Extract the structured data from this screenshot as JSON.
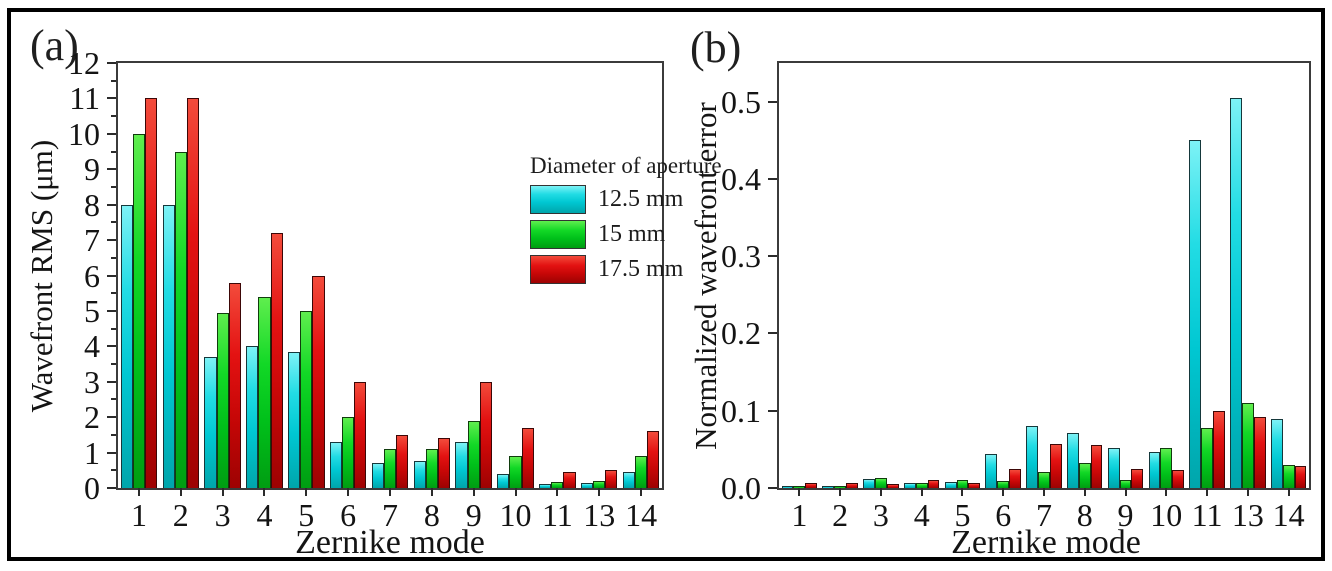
{
  "figure": {
    "background": "#ffffff",
    "frame_color": "#000000",
    "axis_color": "#3b3b3b",
    "text_color": "#141414"
  },
  "legend": {
    "title": "Diameter of aperture",
    "items": [
      {
        "label": "12.5 mm",
        "color": "#00c7d2",
        "color_key": "cyan"
      },
      {
        "label": "15 mm",
        "color": "#00c01a",
        "color_key": "green"
      },
      {
        "label": "17.5 mm",
        "color": "#e31212",
        "color_key": "red"
      }
    ]
  },
  "chart_data": [
    {
      "type": "bar",
      "panel_label": "(a)",
      "title": "",
      "xlabel": "Zernike mode",
      "ylabel": "Wavefront RMS (μm)",
      "categories": [
        "1",
        "2",
        "3",
        "4",
        "5",
        "6",
        "7",
        "8",
        "9",
        "10",
        "11",
        "13",
        "14"
      ],
      "ylim": [
        0,
        12
      ],
      "yticks": [
        {
          "value": 0,
          "label": "0"
        },
        {
          "value": 1,
          "label": "1"
        },
        {
          "value": 2,
          "label": "2"
        },
        {
          "value": 3,
          "label": "3"
        },
        {
          "value": 4,
          "label": "4"
        },
        {
          "value": 5,
          "label": "5"
        },
        {
          "value": 6,
          "label": "6"
        },
        {
          "value": 7,
          "label": "7"
        },
        {
          "value": 8,
          "label": "8"
        },
        {
          "value": 9,
          "label": "9"
        },
        {
          "value": 10,
          "label": "10"
        },
        {
          "value": 11,
          "label": "11"
        },
        {
          "value": 12,
          "label": "12"
        }
      ],
      "yminor_step": 0.5,
      "grid": false,
      "legend_position": "upper-middle-right",
      "series": [
        {
          "name": "12.5 mm",
          "color": "#00c7d2",
          "color_key": "cyan",
          "values": [
            8.0,
            8.0,
            3.7,
            4.0,
            3.85,
            1.3,
            0.7,
            0.75,
            1.3,
            0.4,
            0.12,
            0.15,
            0.45
          ]
        },
        {
          "name": "15 mm",
          "color": "#00c01a",
          "color_key": "green",
          "values": [
            10.0,
            9.5,
            4.95,
            5.4,
            5.0,
            2.0,
            1.1,
            1.1,
            1.9,
            0.9,
            0.18,
            0.2,
            0.9
          ]
        },
        {
          "name": "17.5 mm",
          "color": "#e31212",
          "color_key": "red",
          "values": [
            11.0,
            11.0,
            5.8,
            7.2,
            6.0,
            3.0,
            1.5,
            1.4,
            3.0,
            1.7,
            0.45,
            0.5,
            1.6
          ]
        }
      ]
    },
    {
      "type": "bar",
      "panel_label": "(b)",
      "title": "",
      "xlabel": "Zernike mode",
      "ylabel": "Normalized wavefront error",
      "categories": [
        "1",
        "2",
        "3",
        "4",
        "5",
        "6",
        "7",
        "8",
        "9",
        "10",
        "11",
        "13",
        "14"
      ],
      "ylim": [
        0,
        0.55
      ],
      "yticks": [
        {
          "value": 0.0,
          "label": "0.0"
        },
        {
          "value": 0.1,
          "label": "0.1"
        },
        {
          "value": 0.2,
          "label": "0.2"
        },
        {
          "value": 0.3,
          "label": "0.3"
        },
        {
          "value": 0.4,
          "label": "0.4"
        },
        {
          "value": 0.5,
          "label": "0.5"
        }
      ],
      "yminor_step": null,
      "grid": false,
      "legend_position": "upper-left",
      "series": [
        {
          "name": "12.5 mm",
          "color": "#00c7d2",
          "color_key": "cyan",
          "values": [
            0.002,
            0.002,
            0.012,
            0.006,
            0.008,
            0.044,
            0.08,
            0.071,
            0.052,
            0.046,
            0.45,
            0.505,
            0.089
          ]
        },
        {
          "name": "15 mm",
          "color": "#00c01a",
          "color_key": "green",
          "values": [
            0.002,
            0.002,
            0.013,
            0.007,
            0.01,
            0.009,
            0.021,
            0.032,
            0.01,
            0.052,
            0.078,
            0.11,
            0.03
          ]
        },
        {
          "name": "17.5 mm",
          "color": "#e31212",
          "color_key": "red",
          "values": [
            0.006,
            0.006,
            0.005,
            0.01,
            0.006,
            0.025,
            0.057,
            0.056,
            0.025,
            0.023,
            0.1,
            0.092,
            0.028
          ]
        }
      ]
    }
  ]
}
